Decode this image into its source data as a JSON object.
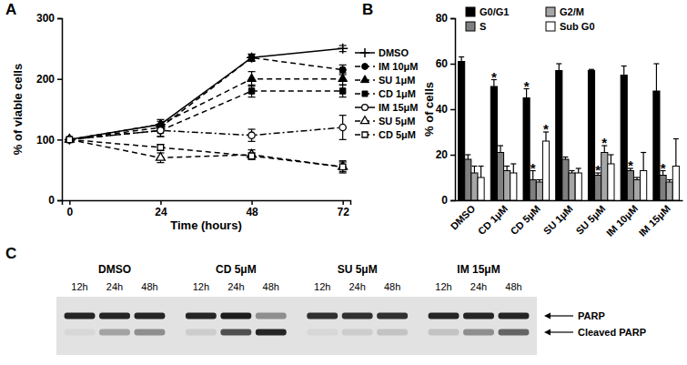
{
  "chart_data": [
    {
      "type": "line",
      "title": "A",
      "x_label": "Time (hours)",
      "y_label": "% of viable cells",
      "x": [
        0,
        24,
        48,
        72
      ],
      "xlim": [
        -2,
        74
      ],
      "xticks": [
        0,
        24,
        48,
        72
      ],
      "ylim": [
        0,
        300
      ],
      "yticks": [
        0,
        100,
        200,
        300
      ],
      "color": "#000000",
      "legend": "right",
      "series": [
        {
          "name": "DMSO",
          "marker": "plus",
          "line_style": "solid",
          "values": [
            100,
            125,
            235,
            250
          ],
          "errors": [
            0,
            5,
            5,
            5
          ]
        },
        {
          "name": "IM 10μM",
          "marker": "circle",
          "line_style": "dashed",
          "values": [
            100,
            120,
            235,
            215
          ],
          "errors": [
            0,
            6,
            6,
            8
          ]
        },
        {
          "name": "SU 1μM",
          "marker": "triangle",
          "line_style": "dashed",
          "values": [
            100,
            125,
            200,
            200
          ],
          "errors": [
            0,
            8,
            12,
            10
          ]
        },
        {
          "name": "CD 1μM",
          "marker": "square",
          "line_style": "dashed",
          "values": [
            100,
            115,
            180,
            180
          ],
          "errors": [
            0,
            10,
            10,
            10
          ]
        },
        {
          "name": "IM 15μM",
          "marker": "circle-open",
          "line_style": "dash-dot",
          "values": [
            100,
            115,
            107,
            120
          ],
          "errors": [
            0,
            10,
            10,
            20
          ]
        },
        {
          "name": "SU 5μM",
          "marker": "triangle-open",
          "line_style": "dashed",
          "values": [
            100,
            70,
            75,
            55
          ],
          "errors": [
            0,
            8,
            8,
            8
          ]
        },
        {
          "name": "CD 5μM",
          "marker": "square-open",
          "line_style": "dashed",
          "values": [
            100,
            87,
            73,
            55
          ],
          "errors": [
            0,
            5,
            5,
            10
          ]
        }
      ]
    },
    {
      "type": "bar",
      "title": "B",
      "y_label": "% of cells",
      "categories": [
        "DMSO",
        "CD 1μM",
        "CD 5μM",
        "SU 1μM",
        "SU 5μM",
        "IM 10μM",
        "IM 15μM"
      ],
      "ylim": [
        0,
        80
      ],
      "yticks": [
        0,
        20,
        40,
        60,
        80
      ],
      "legend": "top-left",
      "series": [
        {
          "name": "G0/G1",
          "color": "#000000",
          "values": [
            61,
            50,
            45,
            57,
            57,
            55,
            48
          ],
          "errors": [
            2,
            3,
            4,
            3,
            0.5,
            4,
            12
          ]
        },
        {
          "name": "S",
          "color": "#7f7f7f",
          "values": [
            18,
            21,
            9,
            18,
            11,
            13,
            11
          ],
          "errors": [
            2,
            3,
            4,
            1,
            1,
            1,
            2
          ]
        },
        {
          "name": "G2/M",
          "color": "#a6a6a6",
          "values": [
            12,
            13,
            8,
            12,
            21,
            9,
            8
          ],
          "errors": [
            3,
            2,
            1,
            1,
            3,
            1,
            1
          ]
        },
        {
          "name": "Sub G0",
          "color": "#ffffff",
          "values": [
            10,
            12,
            26,
            12,
            16,
            13,
            15
          ],
          "errors": [
            5,
            4,
            4,
            2,
            4,
            8,
            12
          ]
        }
      ],
      "annotations": [
        {
          "text": "*",
          "series": 0,
          "category": 1
        },
        {
          "text": "*",
          "series": 0,
          "category": 2
        },
        {
          "text": "*",
          "series": 1,
          "category": 2
        },
        {
          "text": "*",
          "series": 3,
          "category": 2
        },
        {
          "text": "*",
          "series": 1,
          "category": 4
        },
        {
          "text": "*",
          "series": 2,
          "category": 4
        },
        {
          "text": "*",
          "series": 1,
          "category": 5
        },
        {
          "text": "*",
          "series": 1,
          "category": 6
        }
      ]
    },
    {
      "type": "blot",
      "title": "C",
      "groups": [
        "DMSO",
        "CD 5μM",
        "SU 5μM",
        "IM 15μM"
      ],
      "lanes": [
        "12h",
        "24h",
        "48h"
      ],
      "series": [
        {
          "name": "PARP",
          "values": [
            0.9,
            0.9,
            0.9,
            0.9,
            0.95,
            0.4,
            0.85,
            0.85,
            0.85,
            0.9,
            0.9,
            0.9
          ]
        },
        {
          "name": "Cleaved PARP",
          "values": [
            0.05,
            0.3,
            0.4,
            0.1,
            0.7,
            0.9,
            0.05,
            0.1,
            0.15,
            0.15,
            0.4,
            0.6
          ]
        }
      ]
    }
  ]
}
